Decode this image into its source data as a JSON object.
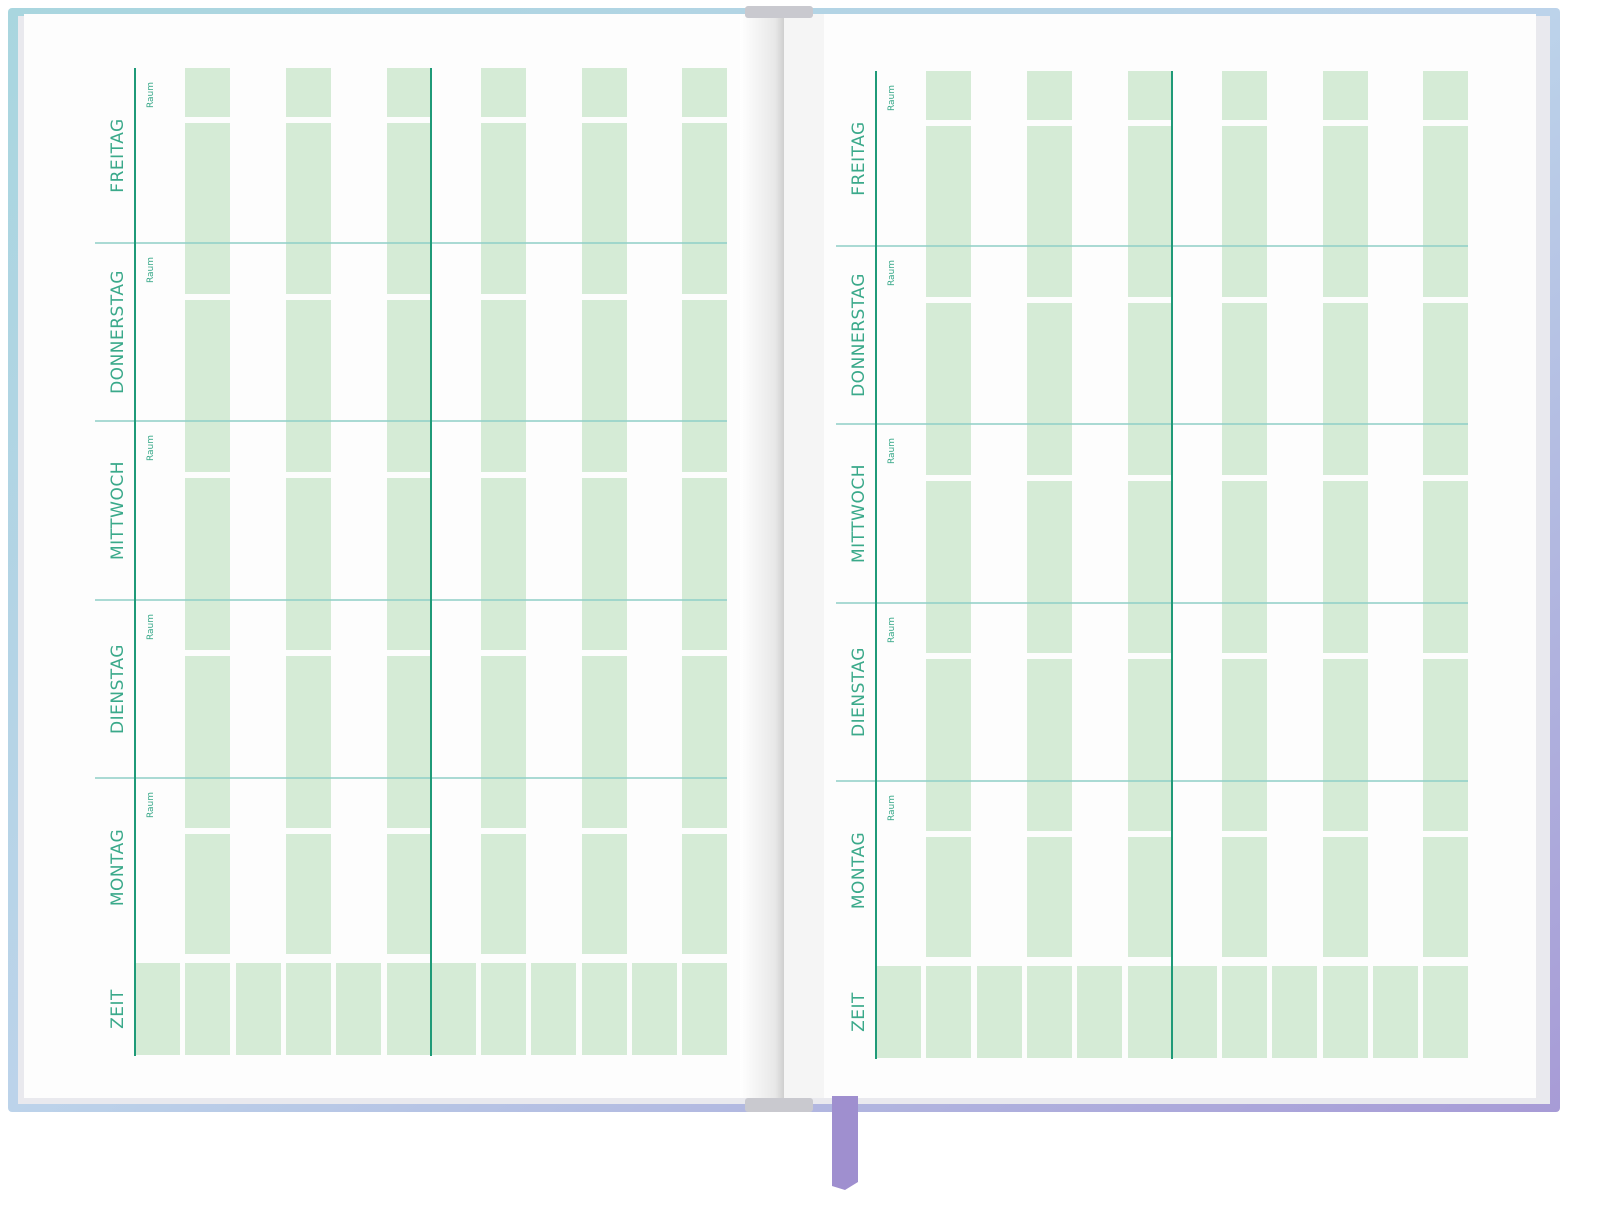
{
  "pages": [
    {
      "days": [
        "FREITAG",
        "DONNERSTAG",
        "MITTWOCH",
        "DIENSTAG",
        "MONTAG"
      ],
      "room_labels": [
        "Raum",
        "Raum",
        "Raum",
        "Raum",
        "Raum"
      ],
      "time_label": "ZEIT"
    },
    {
      "days": [
        "FREITAG",
        "DONNERSTAG",
        "MITTWOCH",
        "DIENSTAG",
        "MONTAG"
      ],
      "room_labels": [
        "Raum",
        "Raum",
        "Raum",
        "Raum",
        "Raum"
      ],
      "time_label": "ZEIT"
    }
  ]
}
